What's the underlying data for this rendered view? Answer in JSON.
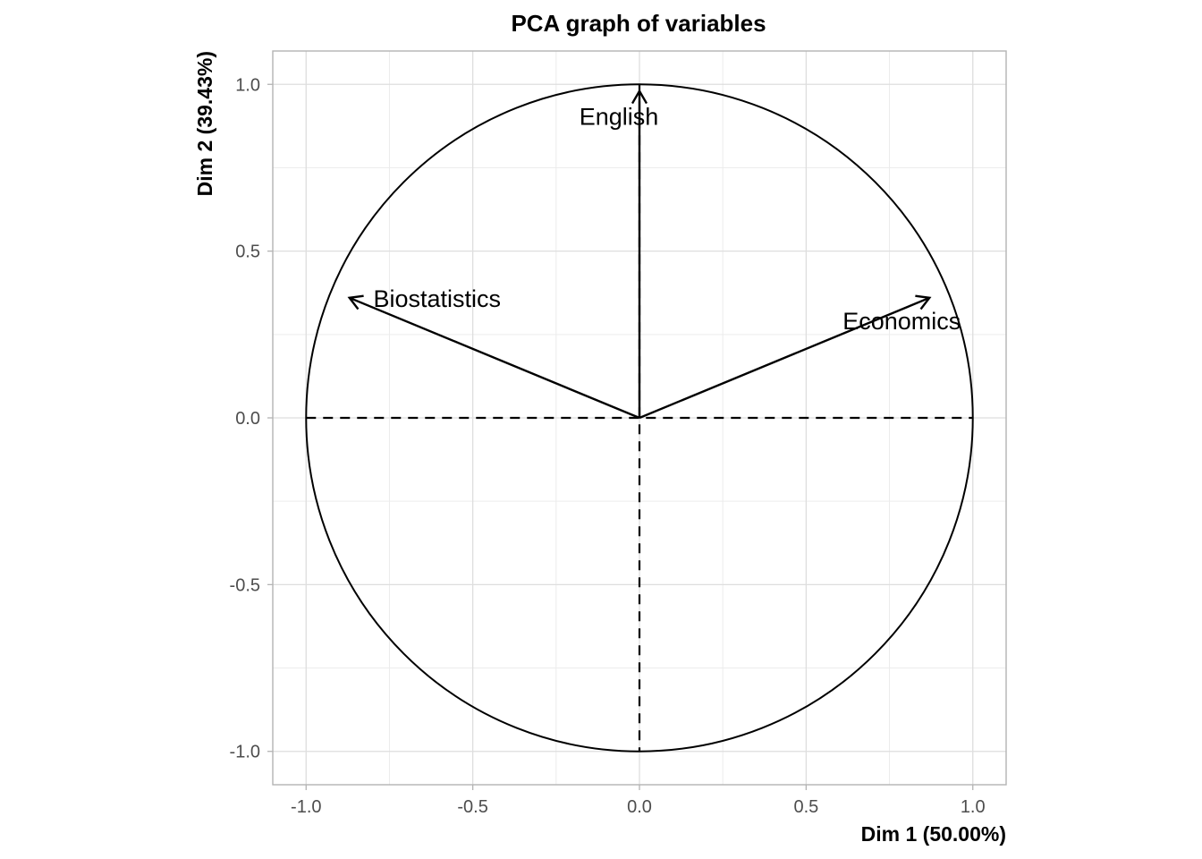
{
  "chart_data": {
    "type": "scatter",
    "subtype": "pca-correlation-circle",
    "title": "PCA graph of variables",
    "xlabel": "Dim 1 (50.00%)",
    "ylabel": "Dim 2 (39.43%)",
    "xlim": [
      -1.1,
      1.1
    ],
    "ylim": [
      -1.1,
      1.1
    ],
    "x_ticks": [
      -1.0,
      -0.5,
      0.0,
      0.5,
      1.0
    ],
    "x_tick_labels": [
      "-1.0",
      "-0.5",
      "0.0",
      "0.5",
      "1.0"
    ],
    "y_ticks": [
      -1.0,
      -0.5,
      0.0,
      0.5,
      1.0
    ],
    "y_tick_labels": [
      "-1.0",
      "-0.5",
      "0.0",
      "0.5",
      "1.0"
    ],
    "grid": true,
    "unit_circle": true,
    "reference_lines": "dashed at x=0 and y=0",
    "variables": [
      {
        "name": "English",
        "x": 0.0,
        "y": 0.98
      },
      {
        "name": "Biostatistics",
        "x": -0.87,
        "y": 0.36
      },
      {
        "name": "Economics",
        "x": 0.87,
        "y": 0.36
      }
    ],
    "colors": {
      "arrows": "#000000",
      "grid": "#dedede",
      "panel_border": "#b3b3b3",
      "tick_text": "#4d4d4d"
    }
  }
}
